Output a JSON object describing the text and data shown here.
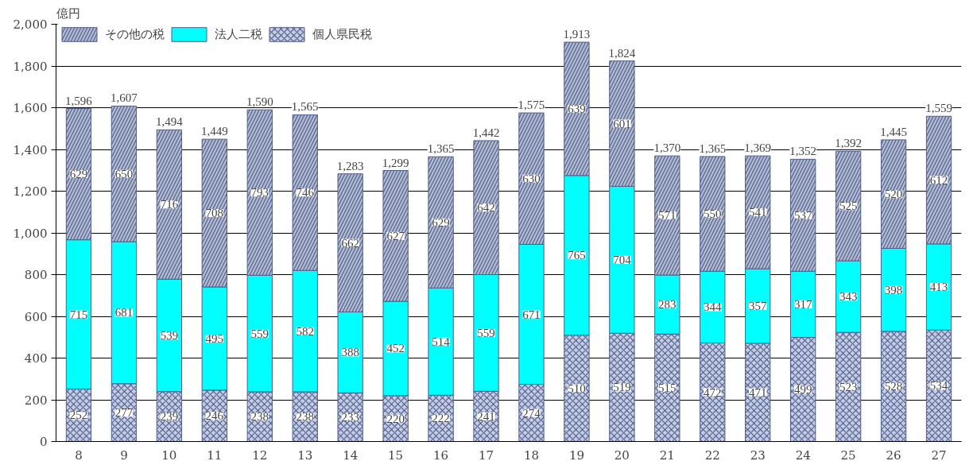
{
  "chart_data": {
    "type": "bar",
    "stacked": true,
    "ylabel": "億円",
    "categories": [
      "8",
      "9",
      "10",
      "11",
      "12",
      "13",
      "14",
      "15",
      "16",
      "17",
      "18",
      "19",
      "20",
      "21",
      "22",
      "23",
      "24",
      "25",
      "26",
      "27"
    ],
    "series": [
      {
        "name": "個人県民税",
        "color": "#c5cde6",
        "values": [
          252,
          277,
          239,
          246,
          238,
          238,
          233,
          220,
          222,
          241,
          274,
          510,
          519,
          515,
          472,
          471,
          499,
          523,
          528,
          534
        ]
      },
      {
        "name": "法人二税",
        "color": "#00ffff",
        "values": [
          715,
          681,
          539,
          495,
          559,
          582,
          388,
          452,
          514,
          559,
          671,
          765,
          704,
          283,
          344,
          357,
          317,
          343,
          398,
          413
        ]
      },
      {
        "name": "その他の税",
        "color": "#b3bbd2",
        "values": [
          629,
          650,
          716,
          708,
          793,
          746,
          662,
          627,
          629,
          642,
          630,
          639,
          601,
          571,
          550,
          541,
          537,
          525,
          520,
          612
        ]
      }
    ],
    "totals": [
      "1,596",
      "1,607",
      "1,494",
      "1,449",
      "1,590",
      "1,565",
      "1,283",
      "1,299",
      "1,365",
      "1,442",
      "1,575",
      "1,913",
      "1,824",
      "1,370",
      "1,365",
      "1,369",
      "1,352",
      "1,392",
      "1,445",
      "1,559"
    ],
    "data_labels": true,
    "ylim": [
      0,
      2000
    ],
    "yticks": [
      {
        "value": 0,
        "label": "0"
      },
      {
        "value": 200,
        "label": "200"
      },
      {
        "value": 400,
        "label": "400"
      },
      {
        "value": 600,
        "label": "600"
      },
      {
        "value": 800,
        "label": "800"
      },
      {
        "value": 1000,
        "label": "1,000"
      },
      {
        "value": 1200,
        "label": "1,200"
      },
      {
        "value": 1400,
        "label": "1,400"
      },
      {
        "value": 1600,
        "label": "1,600"
      },
      {
        "value": 1800,
        "label": "1,800"
      },
      {
        "value": 2000,
        "label": "2,000"
      }
    ],
    "grid": "y",
    "legend": "top left"
  }
}
